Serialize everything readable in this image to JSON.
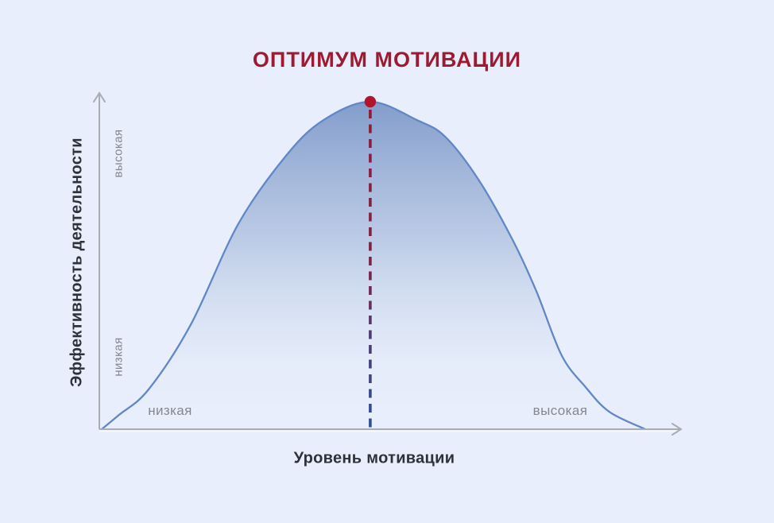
{
  "title": "ОПТИМУМ МОТИВАЦИИ",
  "y_axis": {
    "label": "Эффективность деятельности",
    "tick_high": "высокая",
    "tick_low": "низкая"
  },
  "x_axis": {
    "label": "Уровень мотивации",
    "tick_low": "низкая",
    "tick_high": "высокая"
  },
  "chart_data": {
    "type": "area",
    "title": "ОПТИМУМ МОТИВАЦИИ",
    "xlabel": "Уровень мотивации",
    "ylabel": "Эффективность деятельности",
    "x_tick_labels": [
      "низкая",
      "высокая"
    ],
    "y_tick_labels": [
      "низкая",
      "высокая"
    ],
    "x_range": [
      0,
      1
    ],
    "y_range": [
      0,
      1
    ],
    "grid": false,
    "legend": false,
    "curve_points": [
      [
        0.0,
        0.0
      ],
      [
        0.032,
        0.044
      ],
      [
        0.086,
        0.121
      ],
      [
        0.164,
        0.32
      ],
      [
        0.251,
        0.626
      ],
      [
        0.339,
        0.835
      ],
      [
        0.408,
        0.944
      ],
      [
        0.494,
        1.0
      ],
      [
        0.58,
        0.944
      ],
      [
        0.632,
        0.893
      ],
      [
        0.694,
        0.76
      ],
      [
        0.756,
        0.578
      ],
      [
        0.8,
        0.42
      ],
      [
        0.846,
        0.226
      ],
      [
        0.89,
        0.129
      ],
      [
        0.934,
        0.053
      ],
      [
        1.0,
        0.0
      ]
    ],
    "optimum_point": {
      "x": 0.494,
      "y": 1.0
    },
    "annotation": "vertical dashed line from peak to x-axis with dot marker at optimum"
  },
  "colors": {
    "background": "#e8eefb",
    "title": "#9c1b31",
    "label_text": "#2d3238",
    "tick_text": "#83888f",
    "axis": "#a8adb4",
    "axis_highlight": "#fdfdfe",
    "curve_stroke": "#6187c6",
    "fill_gradient": [
      "#7d98c9",
      "#abbede",
      "#dde6f6",
      "#e8eefb"
    ],
    "optimum_dot": "#b01530",
    "dash_gradient": [
      "#8e1c36",
      "#7c2147",
      "#4d3a71",
      "#2e4f96"
    ]
  }
}
